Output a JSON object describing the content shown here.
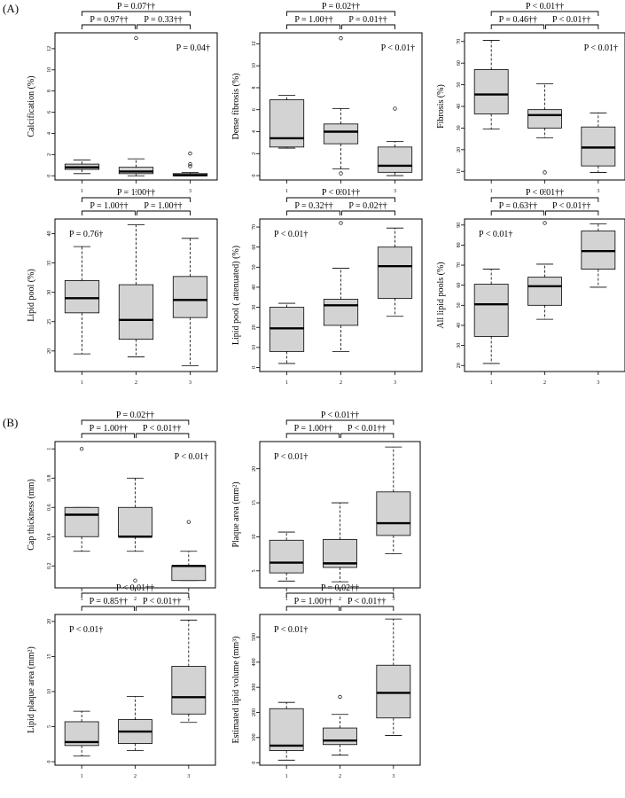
{
  "figure": {
    "section_a_label": "(A)",
    "section_b_label": "(B)"
  },
  "chart_data": [
    {
      "type": "box",
      "section": "A",
      "ylabel": "Calcification (%)",
      "categories": [
        "1",
        "2",
        "3"
      ],
      "ylim": [
        -0.4,
        13.5
      ],
      "yticks": [
        0,
        2,
        4,
        6,
        8,
        10,
        12
      ],
      "groups": [
        {
          "whisker_low": 0.2,
          "q1": 0.6,
          "median": 0.8,
          "q3": 1.1,
          "whisker_high": 1.5,
          "outliers": []
        },
        {
          "whisker_low": 0.0,
          "q1": 0.2,
          "median": 0.4,
          "q3": 0.8,
          "whisker_high": 1.6,
          "outliers": [
            13.0
          ]
        },
        {
          "whisker_low": 0.0,
          "q1": 0.0,
          "median": 0.05,
          "q3": 0.2,
          "whisker_high": 0.3,
          "outliers": [
            0.9,
            1.1,
            2.1
          ]
        }
      ],
      "overall_test": "P = 0.04†",
      "comparisons": {
        "all": "P = 0.07††",
        "g12": "P = 0.97††",
        "g23": "P = 0.33††"
      }
    },
    {
      "type": "box",
      "section": "A",
      "ylabel": "Dense fibrosis (%)",
      "categories": [
        "1",
        "2",
        "3"
      ],
      "ylim": [
        -0.4,
        13.0
      ],
      "yticks": [
        0,
        2,
        4,
        6,
        8,
        10,
        12
      ],
      "groups": [
        {
          "whisker_low": 2.5,
          "q1": 2.6,
          "median": 3.4,
          "q3": 6.9,
          "whisker_high": 7.3,
          "outliers": []
        },
        {
          "whisker_low": 0.6,
          "q1": 2.9,
          "median": 4.0,
          "q3": 4.7,
          "whisker_high": 6.1,
          "outliers": [
            12.5,
            0.2
          ]
        },
        {
          "whisker_low": 0.0,
          "q1": 0.3,
          "median": 0.9,
          "q3": 2.6,
          "whisker_high": 3.1,
          "outliers": [
            6.1
          ]
        }
      ],
      "overall_test": "P < 0.01†",
      "comparisons": {
        "all": "P = 0.02††",
        "g12": "P = 1.00††",
        "g23": "P = 0.01††"
      }
    },
    {
      "type": "box",
      "section": "A",
      "ylabel": "Fibrosis (%)",
      "categories": [
        "1",
        "2",
        "3"
      ],
      "ylim": [
        6,
        74
      ],
      "yticks": [
        10,
        20,
        30,
        40,
        50,
        60,
        70
      ],
      "groups": [
        {
          "whisker_low": 29.5,
          "q1": 36.5,
          "median": 45.5,
          "q3": 57.0,
          "whisker_high": 70.5,
          "outliers": []
        },
        {
          "whisker_low": 25.5,
          "q1": 30.0,
          "median": 36.0,
          "q3": 38.5,
          "whisker_high": 50.5,
          "outliers": [
            9.5
          ]
        },
        {
          "whisker_low": 9.5,
          "q1": 12.5,
          "median": 21.0,
          "q3": 30.5,
          "whisker_high": 37.0,
          "outliers": []
        }
      ],
      "overall_test": "P < 0.01†",
      "comparisons": {
        "all": "P < 0.01††",
        "g12": "P = 0.46††",
        "g23": "P < 0.01††"
      }
    },
    {
      "type": "box",
      "section": "A",
      "ylabel": "Lipid pool (%)",
      "categories": [
        "1",
        "2",
        "3"
      ],
      "ylim": [
        16.5,
        42.5
      ],
      "yticks": [
        20,
        25,
        30,
        35,
        40
      ],
      "groups": [
        {
          "whisker_low": 19.5,
          "q1": 26.5,
          "median": 29.0,
          "q3": 32.0,
          "whisker_high": 37.8,
          "outliers": []
        },
        {
          "whisker_low": 19.0,
          "q1": 22.0,
          "median": 25.3,
          "q3": 31.3,
          "whisker_high": 41.5,
          "outliers": []
        },
        {
          "whisker_low": 17.5,
          "q1": 25.7,
          "median": 28.7,
          "q3": 32.7,
          "whisker_high": 39.2,
          "outliers": []
        }
      ],
      "overall_test": "P = 0.76†",
      "comparisons": {
        "all": "P = 1.00††",
        "g12": "P = 1.00††",
        "g23": "P = 1.00††"
      }
    },
    {
      "type": "box",
      "section": "A",
      "ylabel": "Lipid pool ( attenuated) (%)",
      "categories": [
        "1",
        "2",
        "3"
      ],
      "ylim": [
        -2,
        74
      ],
      "yticks": [
        0,
        10,
        20,
        30,
        40,
        50,
        60,
        70
      ],
      "groups": [
        {
          "whisker_low": 2.0,
          "q1": 8.0,
          "median": 19.5,
          "q3": 30.0,
          "whisker_high": 32.0,
          "outliers": []
        },
        {
          "whisker_low": 8.0,
          "q1": 21.0,
          "median": 31.0,
          "q3": 34.0,
          "whisker_high": 49.5,
          "outliers": [
            72.0
          ]
        },
        {
          "whisker_low": 25.5,
          "q1": 34.5,
          "median": 50.5,
          "q3": 60.0,
          "whisker_high": 69.5,
          "outliers": []
        }
      ],
      "overall_test": "P < 0.01†",
      "comparisons": {
        "all": "P < 0.01††",
        "g12": "P = 0.32††",
        "g23": "P = 0.02††"
      }
    },
    {
      "type": "box",
      "section": "A",
      "ylabel": "All lipid pools (%)",
      "categories": [
        "1",
        "2",
        "3"
      ],
      "ylim": [
        17,
        93
      ],
      "yticks": [
        20,
        30,
        40,
        50,
        60,
        70,
        80,
        90
      ],
      "groups": [
        {
          "whisker_low": 21.0,
          "q1": 34.5,
          "median": 50.5,
          "q3": 60.5,
          "whisker_high": 68.0,
          "outliers": []
        },
        {
          "whisker_low": 43.0,
          "q1": 50.0,
          "median": 59.5,
          "q3": 64.0,
          "whisker_high": 70.5,
          "outliers": [
            91.0
          ]
        },
        {
          "whisker_low": 59.0,
          "q1": 68.0,
          "median": 77.0,
          "q3": 87.0,
          "whisker_high": 90.5,
          "outliers": []
        }
      ],
      "overall_test": "P < 0.01†",
      "comparisons": {
        "all": "P < 0.01††",
        "g12": "P = 0.63††",
        "g23": "P < 0.01††"
      }
    },
    {
      "type": "box",
      "section": "B",
      "ylabel": "Cap thickness (mm)",
      "categories": [
        "1",
        "2",
        "3"
      ],
      "ylim": [
        0.05,
        1.05
      ],
      "yticks": [
        0.2,
        0.4,
        0.6,
        0.8,
        1.0
      ],
      "groups": [
        {
          "whisker_low": 0.3,
          "q1": 0.4,
          "median": 0.55,
          "q3": 0.6,
          "whisker_high": 0.6,
          "outliers": [
            1.0
          ]
        },
        {
          "whisker_low": 0.3,
          "q1": 0.4,
          "median": 0.4,
          "q3": 0.6,
          "whisker_high": 0.8,
          "outliers": [
            0.1
          ]
        },
        {
          "whisker_low": 0.1,
          "q1": 0.1,
          "median": 0.2,
          "q3": 0.2,
          "whisker_high": 0.3,
          "outliers": [
            0.5
          ]
        }
      ],
      "overall_test": "P < 0.01†",
      "comparisons": {
        "all": "P = 0.02††",
        "g12": "P = 1.00††",
        "g23": "P < 0.01††"
      }
    },
    {
      "type": "box",
      "section": "B",
      "ylabel": "Plaque area (mm²)",
      "categories": [
        "1",
        "2",
        "3"
      ],
      "ylim": [
        2.5,
        24
      ],
      "yticks": [
        5,
        10,
        15,
        20
      ],
      "groups": [
        {
          "whisker_low": 3.5,
          "q1": 4.7,
          "median": 6.2,
          "q3": 9.5,
          "whisker_high": 10.7,
          "outliers": []
        },
        {
          "whisker_low": 3.4,
          "q1": 5.5,
          "median": 6.1,
          "q3": 9.6,
          "whisker_high": 15.0,
          "outliers": []
        },
        {
          "whisker_low": 7.5,
          "q1": 10.2,
          "median": 12.0,
          "q3": 16.6,
          "whisker_high": 23.2,
          "outliers": []
        }
      ],
      "overall_test": "P < 0.01†",
      "comparisons": {
        "all": "P < 0.01††",
        "g12": "P = 1.00††",
        "g23": "P < 0.01††"
      }
    },
    {
      "type": "box",
      "section": "B",
      "ylabel": "Lipid plaque area (mm²)",
      "categories": [
        "1",
        "2",
        "3"
      ],
      "ylim": [
        -0.5,
        21
      ],
      "yticks": [
        0,
        5,
        10,
        15,
        20
      ],
      "groups": [
        {
          "whisker_low": 0.8,
          "q1": 2.3,
          "median": 2.8,
          "q3": 5.7,
          "whisker_high": 7.2,
          "outliers": []
        },
        {
          "whisker_low": 1.6,
          "q1": 2.6,
          "median": 4.3,
          "q3": 6.0,
          "whisker_high": 9.3,
          "outliers": []
        },
        {
          "whisker_low": 5.6,
          "q1": 6.8,
          "median": 9.2,
          "q3": 13.6,
          "whisker_high": 20.2,
          "outliers": []
        }
      ],
      "overall_test": "P < 0.01†",
      "comparisons": {
        "all": "P < 0.01††",
        "g12": "P = 0.85††",
        "g23": "P < 0.01††"
      }
    },
    {
      "type": "box",
      "section": "B",
      "ylabel": "Estimated lipid volume (mm³)",
      "categories": [
        "1",
        "2",
        "3"
      ],
      "ylim": [
        -10,
        590
      ],
      "yticks": [
        0,
        100,
        200,
        300,
        400,
        500
      ],
      "groups": [
        {
          "whisker_low": 10,
          "q1": 48,
          "median": 68,
          "q3": 215,
          "whisker_high": 240,
          "outliers": []
        },
        {
          "whisker_low": 30,
          "q1": 72,
          "median": 88,
          "q3": 138,
          "whisker_high": 192,
          "outliers": [
            262
          ]
        },
        {
          "whisker_low": 108,
          "q1": 178,
          "median": 278,
          "q3": 388,
          "whisker_high": 572,
          "outliers": []
        }
      ],
      "overall_test": "P < 0.01†",
      "comparisons": {
        "all": "P = 0.02††",
        "g12": "P = 1.00††",
        "g23": "P < 0.01††"
      }
    }
  ]
}
